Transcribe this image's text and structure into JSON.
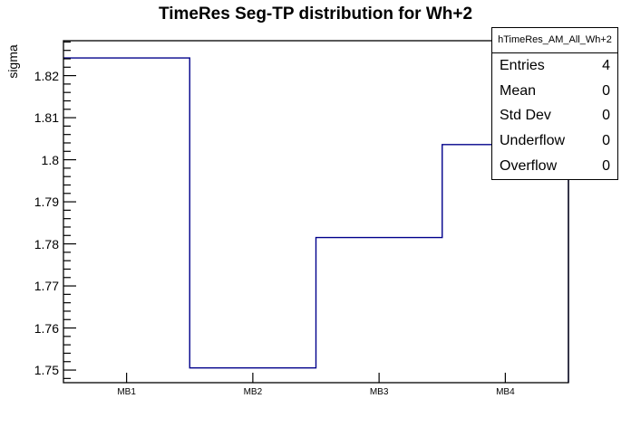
{
  "title": "TimeRes Seg-TP distribution for Wh+2",
  "colors": {
    "histogram_line": "#00008b",
    "axis_line": "#000000",
    "background": "#ffffff",
    "text": "#000000"
  },
  "chart_data": {
    "type": "bar",
    "style": "step-outline-histogram",
    "title": "TimeRes Seg-TP distribution for Wh+2",
    "categories": [
      "MB1",
      "MB2",
      "MB3",
      "MB4"
    ],
    "values": [
      1.8242,
      1.7505,
      1.7815,
      1.8036
    ],
    "xlabel": "",
    "ylabel": "sigma",
    "ylim": [
      1.747,
      1.8283
    ],
    "yticks": [
      1.75,
      1.76,
      1.77,
      1.78,
      1.79,
      1.8,
      1.81,
      1.82
    ],
    "ytick_labels": [
      "1.75",
      "1.76",
      "1.77",
      "1.78",
      "1.79",
      "1.8",
      "1.81",
      "1.82"
    ],
    "y_minor_step": 0.002,
    "grid": false,
    "legend_position": "none"
  },
  "stats_box": {
    "header": "hTimeRes_AM_All_Wh+2",
    "rows": [
      {
        "label": "Entries",
        "value": "4"
      },
      {
        "label": "Mean",
        "value": "0"
      },
      {
        "label": "Std Dev",
        "value": "0"
      },
      {
        "label": "Underflow",
        "value": "0"
      },
      {
        "label": "Overflow",
        "value": "0"
      }
    ]
  }
}
